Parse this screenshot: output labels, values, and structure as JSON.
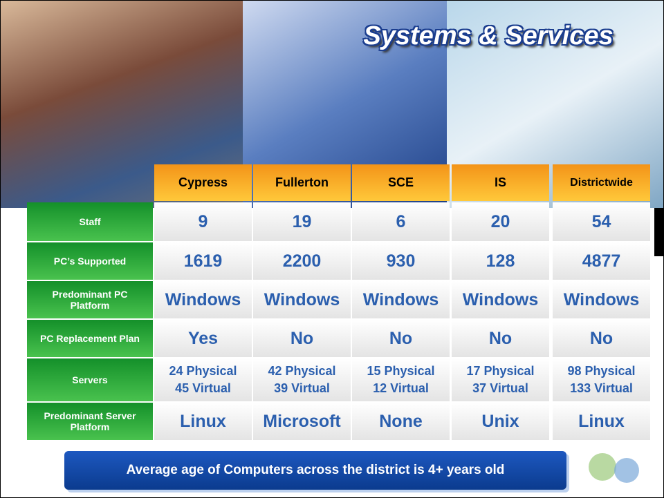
{
  "header": {
    "title": "Systems & Services"
  },
  "table": {
    "columns": [
      "Cypress",
      "Fullerton",
      "SCE",
      "IS",
      "Districtwide"
    ],
    "rows": [
      {
        "label": "Staff",
        "cells": [
          "9",
          "19",
          "6",
          "20",
          "54"
        ]
      },
      {
        "label": "PC’s Supported",
        "cells": [
          "1619",
          "2200",
          "930",
          "128",
          "4877"
        ]
      },
      {
        "label": "Predominant PC Platform",
        "cells": [
          "Windows",
          "Windows",
          "Windows",
          "Windows",
          "Windows"
        ]
      },
      {
        "label": "PC Replacement Plan",
        "cells": [
          "Yes",
          "No",
          "No",
          "No",
          "No"
        ]
      },
      {
        "label": "Servers",
        "cells": [
          [
            "24 Physical",
            "45 Virtual"
          ],
          [
            "42 Physical",
            "39 Virtual"
          ],
          [
            "15 Physical",
            "12 Virtual"
          ],
          [
            "17 Physical",
            "37 Virtual"
          ],
          [
            "98 Physical",
            "133 Virtual"
          ]
        ]
      },
      {
        "label": "Predominant Server Platform",
        "cells": [
          "Linux",
          "Microsoft",
          "None",
          "Unix",
          "Linux"
        ]
      }
    ]
  },
  "footer": {
    "note": "Average age of Computers across the district is 4+ years old"
  }
}
